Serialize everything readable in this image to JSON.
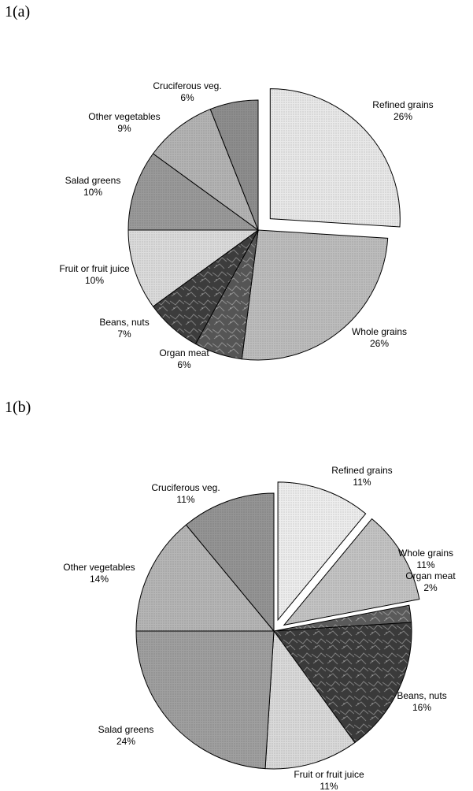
{
  "panels": {
    "a": {
      "label": "1(a)"
    },
    "b": {
      "label": "1(b)"
    }
  },
  "chart_data": [
    {
      "type": "pie",
      "title": "",
      "slices": [
        {
          "name": "Refined grains",
          "value": 26,
          "label": "26%",
          "color": "#e9e9e9",
          "exploded": true
        },
        {
          "name": "Whole grains",
          "value": 26,
          "label": "26%",
          "color": "#bdbdbd"
        },
        {
          "name": "Organ meat",
          "value": 6,
          "label": "6%",
          "color": "#555555"
        },
        {
          "name": "Beans, nuts",
          "value": 7,
          "label": "7%",
          "color": "#3c3c3c"
        },
        {
          "name": "Fruit or fruit juice",
          "value": 10,
          "label": "10%",
          "color": "#dcdcdc"
        },
        {
          "name": "Salad greens",
          "value": 10,
          "label": "10%",
          "color": "#9a9a9a"
        },
        {
          "name": "Other vegetables",
          "value": 9,
          "label": "9%",
          "color": "#b4b4b4"
        },
        {
          "name": "Cruciferous veg.",
          "value": 6,
          "label": "6%",
          "color": "#8e8e8e"
        }
      ]
    },
    {
      "type": "pie",
      "title": "",
      "slices": [
        {
          "name": "Refined grains",
          "value": 11,
          "label": "11%",
          "color": "#eeeeee",
          "exploded": true
        },
        {
          "name": "Whole grains",
          "value": 11,
          "label": "11%",
          "color": "#c4c4c4",
          "exploded": true
        },
        {
          "name": "Organ meat",
          "value": 2,
          "label": "2%",
          "color": "#5a5a5a"
        },
        {
          "name": "Beans, nuts",
          "value": 16,
          "label": "16%",
          "color": "#3a3a3a"
        },
        {
          "name": "Fruit or fruit juice",
          "value": 11,
          "label": "11%",
          "color": "#dadada"
        },
        {
          "name": "Salad greens",
          "value": 24,
          "label": "24%",
          "color": "#a0a0a0"
        },
        {
          "name": "Other vegetables",
          "value": 14,
          "label": "14%",
          "color": "#b6b6b6"
        },
        {
          "name": "Cruciferous veg.",
          "value": 11,
          "label": "11%",
          "color": "#959595"
        }
      ]
    }
  ]
}
